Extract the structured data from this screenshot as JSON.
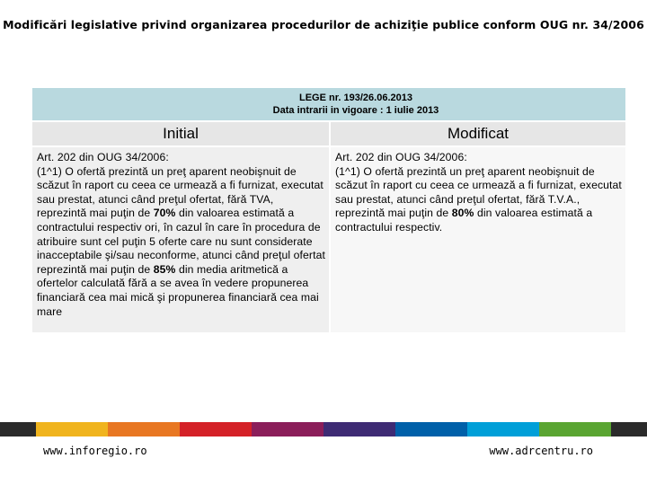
{
  "title": "Modificări legislative privind organizarea procedurilor de achiziţie publice conform OUG nr. 34/2006",
  "table": {
    "law_line": "LEGE nr. 193/26.06.2013",
    "date_line": "Data intrarii in vigoare : 1 iulie 2013",
    "col_left_header": "Initial",
    "col_right_header": "Modificat",
    "left": {
      "line1": "Art. 202 din OUG 34/2006:",
      "text_a": "(1^1) O ofertă prezintă un preţ aparent neobişnuit de scăzut în raport cu ceea ce urmează a fi furnizat, executat sau prestat, atunci când preţul ofertat, fără TVA, reprezintă mai puţin de ",
      "pct1": "70%",
      "text_b": " din valoarea estimată a contractului respectiv ori, în cazul în care în procedura de atribuire sunt cel puţin 5 oferte care nu sunt considerate inacceptabile şi/sau neconforme, atunci când preţul ofertat reprezintă mai puţin de ",
      "pct2": "85%",
      "text_c": " din media aritmetică a ofertelor calculată fără a se avea în vedere propunerea financiară cea mai mică şi propunerea financiară cea mai mare"
    },
    "right": {
      "line1": "Art. 202 din OUG 34/2006:",
      "text_a": "(1^1) O ofertă prezintă un preţ aparent neobişnuit de scăzut în raport cu ceea ce urmează a fi furnizat, executat sau prestat, atunci când preţul ofertat, fără T.V.A., reprezintă mai puţin de ",
      "pct1": "80%",
      "text_b": " din valoarea estimată a contractului respectiv."
    }
  },
  "colors": [
    "#2b2b2b",
    "#f0b41e",
    "#e87722",
    "#d42127",
    "#8b1e5a",
    "#3e2b74",
    "#0060a9",
    "#009fd8",
    "#5aa532",
    "#2b2b2b"
  ],
  "footer": {
    "left_url": "www.inforegio.ro",
    "right_url": "www.adrcentru.ro"
  }
}
